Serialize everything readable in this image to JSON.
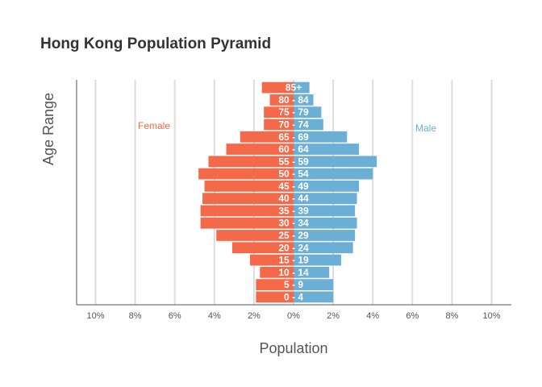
{
  "chart_data": {
    "type": "bar",
    "orientation": "horizontal",
    "title": "Hong Kong Population Pyramid",
    "xlabel": "Population",
    "ylabel": "Age Range",
    "xlim": [
      -11,
      11
    ],
    "xticks": [
      -10,
      -8,
      -6,
      -4,
      -2,
      0,
      2,
      4,
      6,
      8,
      10
    ],
    "xtick_labels": [
      "10%",
      "8%",
      "6%",
      "4%",
      "2%",
      "0%",
      "2%",
      "4%",
      "6%",
      "8%",
      "10%"
    ],
    "grid": "vertical",
    "categories": [
      "0 - 4",
      "5 - 9",
      "10 - 14",
      "15 - 19",
      "20 - 24",
      "25 - 29",
      "30 - 34",
      "35 - 39",
      "40 - 44",
      "45 - 49",
      "50 - 54",
      "55 - 59",
      "60 - 64",
      "65 - 69",
      "70 - 74",
      "75 - 79",
      "80 - 84",
      "85+"
    ],
    "series": [
      {
        "name": "Female",
        "color": "#f4694a",
        "values": [
          1.9,
          1.9,
          1.7,
          2.2,
          3.1,
          3.9,
          4.7,
          4.7,
          4.6,
          4.5,
          4.8,
          4.3,
          3.4,
          2.7,
          1.5,
          1.5,
          1.2,
          1.6
        ]
      },
      {
        "name": "Male",
        "color": "#6baed6",
        "values": [
          2.0,
          2.0,
          1.8,
          2.4,
          3.0,
          3.1,
          3.2,
          3.1,
          3.2,
          3.3,
          4.0,
          4.2,
          3.3,
          2.7,
          1.5,
          1.4,
          1.0,
          0.8
        ]
      }
    ]
  },
  "colors": {
    "female": "#f4694a",
    "male": "#6baed6",
    "grid": "#dddddd",
    "axis": "#555555"
  }
}
